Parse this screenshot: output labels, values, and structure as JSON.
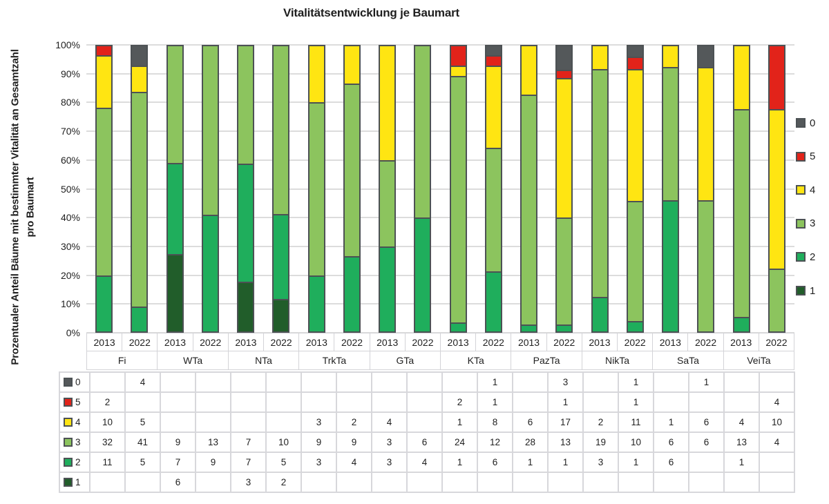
{
  "chart_data": {
    "type": "bar",
    "stacked": true,
    "units": "percent_of_group_total",
    "title": "Vitalitätsentwicklung je Baumart",
    "ylabel": "Prozentualer Anteil Bäume mit bestimmter Vitalität an Gesamtzahl pro Baumart",
    "ylabel_lines": [
      "Prozentualer Anteil Bäume mit bestimmter Vitalität an Gesamtzahl",
      "pro Baumart"
    ],
    "y_ticks": [
      "0%",
      "10%",
      "20%",
      "30%",
      "40%",
      "50%",
      "60%",
      "70%",
      "80%",
      "90%",
      "100%"
    ],
    "ylim": [
      0,
      100
    ],
    "grid": "horizontal",
    "legend_position": "right",
    "groups": [
      "Fi",
      "WTa",
      "NTa",
      "TrkTa",
      "GTa",
      "KTa",
      "PazTa",
      "NikTa",
      "SaTa",
      "VeiTa"
    ],
    "years": [
      "2013",
      "2022"
    ],
    "stack_order": [
      "1",
      "2",
      "3",
      "4",
      "5",
      "0"
    ],
    "legend_order": [
      "0",
      "5",
      "4",
      "3",
      "2",
      "1"
    ],
    "table_row_order": [
      "0",
      "5",
      "4",
      "3",
      "2",
      "1"
    ],
    "series": {
      "0": {
        "label": "0",
        "color": "#54585a",
        "values": [
          0,
          4,
          0,
          0,
          0,
          0,
          0,
          0,
          0,
          0,
          0,
          1,
          0,
          3,
          0,
          1,
          0,
          1,
          0,
          0
        ]
      },
      "5": {
        "label": "5",
        "color": "#e2231a",
        "values": [
          2,
          0,
          0,
          0,
          0,
          0,
          0,
          0,
          0,
          0,
          2,
          1,
          0,
          1,
          0,
          1,
          0,
          0,
          0,
          4
        ]
      },
      "4": {
        "label": "4",
        "color": "#ffe512",
        "values": [
          10,
          5,
          0,
          0,
          0,
          0,
          3,
          2,
          4,
          0,
          1,
          8,
          6,
          17,
          2,
          11,
          1,
          6,
          4,
          10
        ]
      },
      "3": {
        "label": "3",
        "color": "#8cc45e",
        "values": [
          32,
          41,
          9,
          13,
          7,
          10,
          9,
          9,
          3,
          6,
          24,
          12,
          28,
          13,
          19,
          10,
          6,
          6,
          13,
          4
        ]
      },
      "2": {
        "label": "2",
        "color": "#1fae5c",
        "values": [
          11,
          5,
          7,
          9,
          7,
          5,
          3,
          4,
          3,
          4,
          1,
          6,
          1,
          1,
          3,
          1,
          6,
          0,
          1,
          0
        ]
      },
      "1": {
        "label": "1",
        "color": "#215d2a",
        "values": [
          0,
          0,
          6,
          0,
          3,
          2,
          0,
          0,
          0,
          0,
          0,
          0,
          0,
          0,
          0,
          0,
          0,
          0,
          0,
          0
        ]
      }
    },
    "colors": {
      "bar_border": "#4c5154",
      "gridline": "#dcdcdc",
      "axis_border": "#d3d3d7",
      "table_border": "#d7d7db",
      "text": "#1f1f1f"
    }
  }
}
